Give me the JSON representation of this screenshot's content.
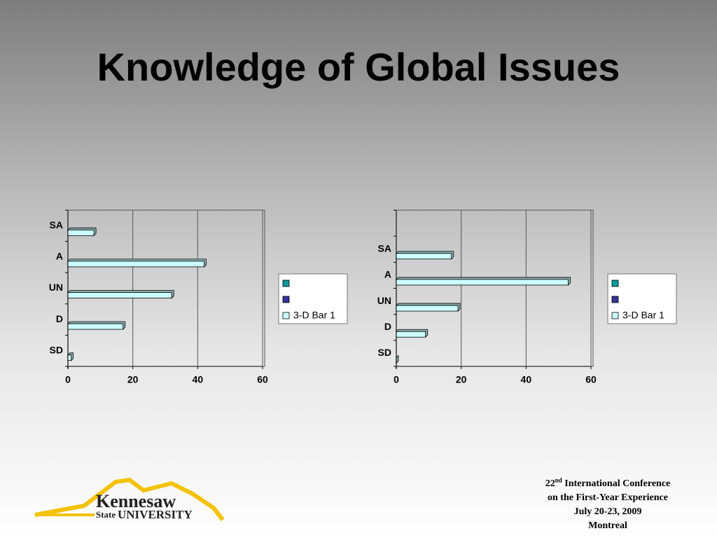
{
  "title": "Knowledge of Global Issues",
  "chart_data": [
    {
      "type": "bar",
      "orientation": "horizontal",
      "categories": [
        "SA",
        "A",
        "UN",
        "D",
        "SD"
      ],
      "series": [
        {
          "name": "3-D Bar 1",
          "color": "#ccffff",
          "values": [
            8,
            42,
            32,
            17,
            1
          ]
        }
      ],
      "xlim": [
        0,
        60
      ],
      "xticks": [
        0,
        20,
        40,
        60
      ],
      "grid": true,
      "legend": "right"
    },
    {
      "type": "bar",
      "orientation": "horizontal",
      "categories": [
        null,
        "SA",
        "A",
        "UN",
        "D",
        "SD"
      ],
      "series": [
        {
          "name": "3-D Bar 1",
          "color": "#ccffff",
          "values": [
            null,
            17,
            53,
            19,
            9,
            0
          ]
        }
      ],
      "xlim": [
        0,
        60
      ],
      "xticks": [
        0,
        20,
        40,
        60
      ],
      "grid": true,
      "legend": "right"
    }
  ],
  "logo": {
    "name": "Kennesaw",
    "state": "State",
    "university": "UNIVERSITY"
  },
  "conference": {
    "number": "22",
    "suffix": "nd",
    "line1": "International Conference",
    "line2": "on the First-Year Experience",
    "line3": "July 20-23, 2009",
    "line4": "Montreal"
  }
}
